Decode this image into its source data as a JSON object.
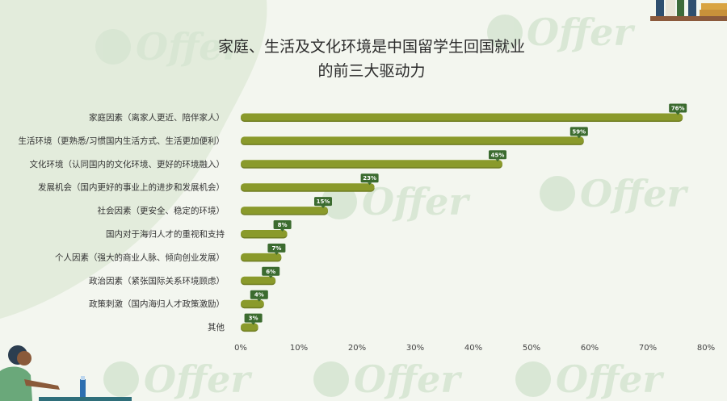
{
  "chart_data": {
    "type": "bar",
    "orientation": "horizontal",
    "title_lines": [
      "家庭、生活及文化环境是中国留学生回国就业",
      "的前三大驱动力"
    ],
    "categories": [
      "家庭因素（离家人更近、陪伴家人）",
      "生活环境（更熟悉/习惯国内生活方式、生活更加便利）",
      "文化环境（认同国内的文化环境、更好的环境融入）",
      "发展机会（国内更好的事业上的进步和发展机会）",
      "社会因素（更安全、稳定的环境）",
      "国内对于海归人才的重视和支持",
      "个人因素（强大的商业人脉、倾向创业发展）",
      "政治因素（紧张国际关系环境顾虑）",
      "政策刺激（国内海归人才政策激励）",
      "其他"
    ],
    "values": [
      76,
      59,
      45,
      23,
      15,
      8,
      7,
      6,
      4,
      3
    ],
    "value_labels": [
      "76%",
      "59%",
      "45%",
      "23%",
      "15%",
      "8%",
      "7%",
      "6%",
      "4%",
      "3%"
    ],
    "xlim": [
      0,
      80
    ],
    "x_ticks": [
      0,
      10,
      20,
      30,
      40,
      50,
      60,
      70,
      80
    ],
    "x_tick_labels": [
      "0%",
      "10%",
      "20%",
      "30%",
      "40%",
      "50%",
      "60%",
      "70%",
      "80%"
    ],
    "grid": false,
    "legend": "none"
  },
  "watermark_text": "Offer",
  "colors": {
    "background": "#f3f6ef",
    "bar": "#8a9a2b",
    "bar_shadow": "#6f7d22",
    "label_bubble": "#3b6b2f",
    "decor_blob": "#e3ecdc"
  }
}
